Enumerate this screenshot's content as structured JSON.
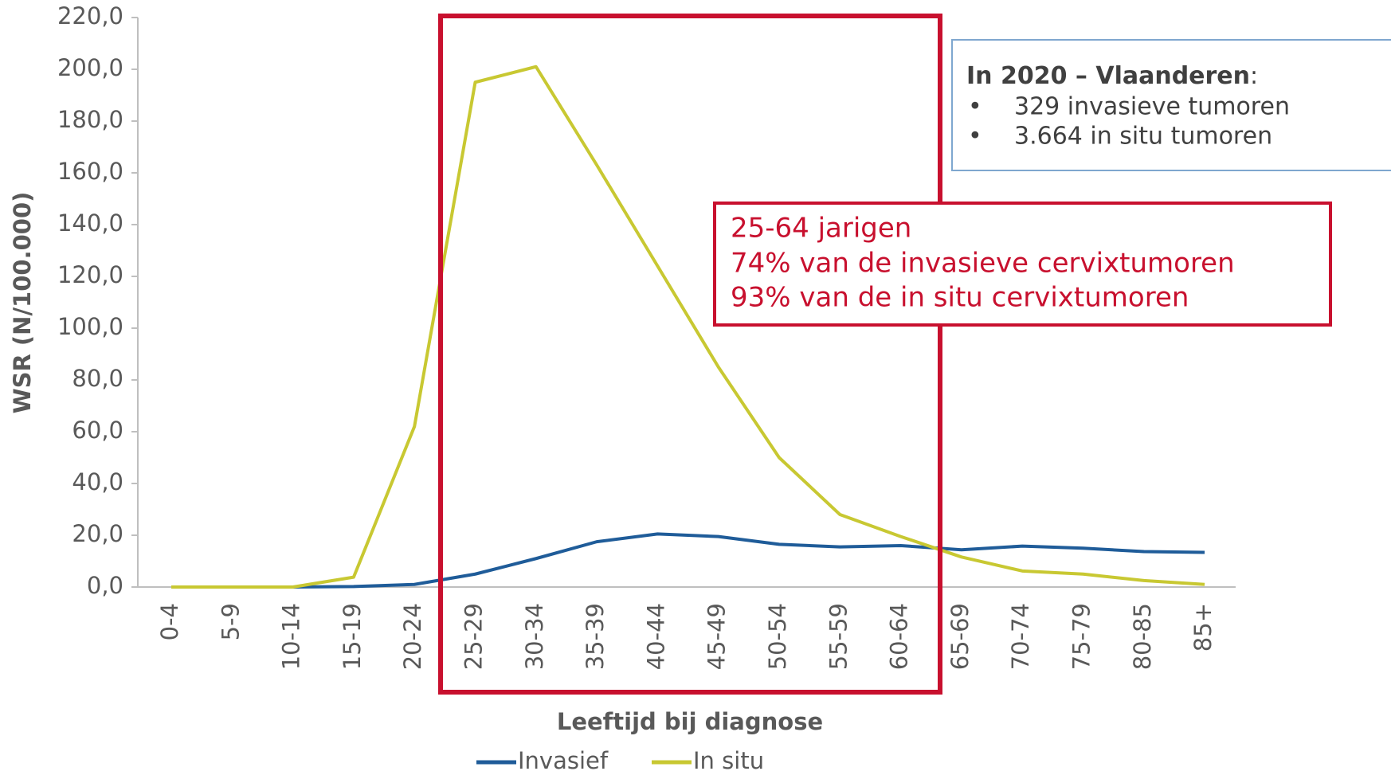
{
  "chart_data": {
    "type": "line",
    "categories": [
      "0-4",
      "5-9",
      "10-14",
      "15-19",
      "20-24",
      "25-29",
      "30-34",
      "35-39",
      "40-44",
      "45-49",
      "50-54",
      "55-59",
      "60-64",
      "65-69",
      "70-74",
      "75-79",
      "80-85",
      "85+"
    ],
    "series": [
      {
        "name": "Invasief",
        "color": "#1f5c99",
        "values": [
          0,
          0,
          0,
          0.2,
          1,
          5,
          11,
          17.5,
          20.5,
          19.5,
          16.5,
          15.5,
          16,
          14.4,
          15.8,
          15,
          13.7,
          13.4
        ]
      },
      {
        "name": "In situ",
        "color": "#c8c832",
        "values": [
          0,
          0,
          0,
          3.8,
          62,
          195,
          201,
          163,
          124,
          85,
          50,
          28,
          19.5,
          11.6,
          6.2,
          5,
          2.5,
          1
        ]
      }
    ],
    "ylim": [
      0,
      220
    ],
    "yticks": [
      {
        "value": 0,
        "label": "0,0"
      },
      {
        "value": 20,
        "label": "20,0"
      },
      {
        "value": 40,
        "label": "40,0"
      },
      {
        "value": 60,
        "label": "60,0"
      },
      {
        "value": 80,
        "label": "80,0"
      },
      {
        "value": 100,
        "label": "100,0"
      },
      {
        "value": 120,
        "label": "120,0"
      },
      {
        "value": 140,
        "label": "140,0"
      },
      {
        "value": 160,
        "label": "160,0"
      },
      {
        "value": 180,
        "label": "180,0"
      },
      {
        "value": 200,
        "label": "200,0"
      },
      {
        "value": 220,
        "label": "220,0"
      }
    ],
    "y_label": "WSR (N/100.000)",
    "x_label": "Leeftijd bij diagnose",
    "info_box": {
      "title": "In 2020 – Vlaanderen",
      "title_suffix": ":",
      "items": [
        "329 invasieve tumoren",
        "3.664 in situ tumoren"
      ]
    },
    "highlight_box": {
      "lines": [
        "25-64 jarigen",
        "74% van de invasieve cervixtumoren",
        "93% van de in situ cervixtumoren"
      ]
    }
  }
}
